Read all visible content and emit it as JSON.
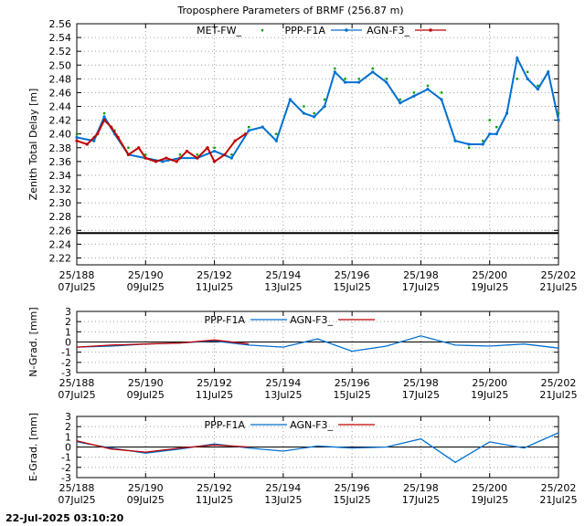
{
  "timestamp": "22-Jul-2025 03:10:20",
  "colors": {
    "met": "#00a000",
    "ppp": "#0070d0",
    "agn": "#c00000",
    "grid": "#a0a0a0",
    "axis": "#000000"
  },
  "x_ticks": [
    {
      "day": 188,
      "top": "25/188",
      "bottom": "07Jul25"
    },
    {
      "day": 190,
      "top": "25/190",
      "bottom": "09Jul25"
    },
    {
      "day": 192,
      "top": "25/192",
      "bottom": "11Jul25"
    },
    {
      "day": 194,
      "top": "25/194",
      "bottom": "13Jul25"
    },
    {
      "day": 196,
      "top": "25/196",
      "bottom": "15Jul25"
    },
    {
      "day": 198,
      "top": "25/198",
      "bottom": "17Jul25"
    },
    {
      "day": 200,
      "top": "25/200",
      "bottom": "19Jul25"
    },
    {
      "day": 202,
      "top": "25/202",
      "bottom": "21Jul25"
    }
  ],
  "chart_data": [
    {
      "type": "line",
      "title": "Troposphere Parameters of BRMF (256.87 m)",
      "ylabel": "Zenith Total Delay [m]",
      "xlim": [
        188,
        202
      ],
      "ylim": [
        2.21,
        2.56
      ],
      "yticks": [
        "2.22",
        "2.24",
        "2.26",
        "2.28",
        "2.30",
        "2.32",
        "2.34",
        "2.36",
        "2.38",
        "2.40",
        "2.42",
        "2.44",
        "2.46",
        "2.48",
        "2.50",
        "2.52",
        "2.54",
        "2.56"
      ],
      "grid": true,
      "legend": "top-center",
      "series": [
        {
          "name": "MET-FW_",
          "color": "#00a000",
          "x": [
            188.0,
            188.5,
            188.8,
            189.1,
            189.5,
            190.0,
            190.5,
            191.0,
            191.5,
            192.0,
            192.5,
            193.0,
            193.4,
            193.8,
            194.2,
            194.6,
            194.9,
            195.2,
            195.5,
            195.8,
            196.2,
            196.6,
            197.0,
            197.4,
            197.8,
            198.2,
            198.6,
            199.0,
            199.4,
            199.8,
            200.0,
            200.2,
            200.5,
            200.8,
            201.1,
            201.4,
            201.7,
            202.0
          ],
          "y": [
            2.4,
            2.395,
            2.43,
            2.405,
            2.38,
            2.37,
            2.36,
            2.37,
            2.37,
            2.38,
            2.37,
            2.41,
            2.41,
            2.4,
            2.45,
            2.44,
            2.43,
            2.45,
            2.495,
            2.48,
            2.48,
            2.495,
            2.48,
            2.45,
            2.46,
            2.47,
            2.46,
            2.39,
            2.38,
            2.39,
            2.42,
            2.41,
            2.43,
            2.48,
            2.49,
            2.47,
            2.49,
            2.43
          ]
        },
        {
          "name": "PPP-F1A",
          "color": "#0070d0",
          "x": [
            188.0,
            188.5,
            188.8,
            189.1,
            189.5,
            190.0,
            190.5,
            191.0,
            191.5,
            192.0,
            192.5,
            193.0,
            193.4,
            193.8,
            194.2,
            194.6,
            194.9,
            195.2,
            195.5,
            195.8,
            196.2,
            196.6,
            197.0,
            197.4,
            197.8,
            198.2,
            198.6,
            199.0,
            199.4,
            199.8,
            200.0,
            200.2,
            200.5,
            200.8,
            201.1,
            201.4,
            201.7,
            202.0
          ],
          "y": [
            2.395,
            2.39,
            2.425,
            2.4,
            2.37,
            2.365,
            2.36,
            2.365,
            2.365,
            2.375,
            2.365,
            2.405,
            2.41,
            2.39,
            2.45,
            2.43,
            2.425,
            2.44,
            2.49,
            2.475,
            2.475,
            2.49,
            2.475,
            2.445,
            2.455,
            2.465,
            2.45,
            2.39,
            2.385,
            2.385,
            2.4,
            2.4,
            2.43,
            2.51,
            2.48,
            2.465,
            2.49,
            2.42
          ]
        },
        {
          "name": "AGN-F3_",
          "color": "#c00000",
          "x": [
            188.0,
            188.3,
            188.6,
            188.8,
            189.0,
            189.2,
            189.5,
            189.8,
            190.0,
            190.3,
            190.6,
            190.9,
            191.2,
            191.5,
            191.8,
            192.0,
            192.3,
            192.6,
            192.9
          ],
          "y": [
            2.39,
            2.385,
            2.4,
            2.42,
            2.41,
            2.395,
            2.37,
            2.38,
            2.365,
            2.36,
            2.365,
            2.36,
            2.375,
            2.365,
            2.38,
            2.36,
            2.37,
            2.39,
            2.4
          ]
        },
        {
          "name": "",
          "color": "#000000",
          "x": [
            188.0,
            202.0
          ],
          "y": [
            2.256,
            2.256
          ]
        }
      ]
    },
    {
      "type": "line",
      "ylabel": "N-Grad. [mm]",
      "xlim": [
        188,
        202
      ],
      "ylim": [
        -3,
        3
      ],
      "yticks": [
        "-3",
        "-2",
        "-1",
        "0",
        "1",
        "2",
        "3"
      ],
      "grid": true,
      "legend": "top-center",
      "series": [
        {
          "name": "PPP-F1A",
          "color": "#0070d0",
          "x": [
            188,
            189,
            190,
            191,
            192,
            193,
            194,
            195,
            196,
            197,
            198,
            199,
            200,
            201,
            202
          ],
          "y": [
            -0.5,
            -0.4,
            -0.2,
            -0.1,
            0.1,
            -0.3,
            -0.5,
            0.3,
            -0.9,
            -0.4,
            0.6,
            -0.3,
            -0.4,
            -0.2,
            -0.6
          ]
        },
        {
          "name": "AGN-F3_",
          "color": "#c00000",
          "x": [
            188,
            189,
            190,
            191,
            192,
            193
          ],
          "y": [
            -0.5,
            -0.3,
            -0.2,
            -0.1,
            0.2,
            -0.2
          ]
        }
      ]
    },
    {
      "type": "line",
      "ylabel": "E-Grad. [mm]",
      "xlim": [
        188,
        202
      ],
      "ylim": [
        -3,
        3
      ],
      "yticks": [
        "-3",
        "-2",
        "-1",
        "0",
        "1",
        "2",
        "3"
      ],
      "grid": true,
      "legend": "top-center",
      "series": [
        {
          "name": "PPP-F1A",
          "color": "#0070d0",
          "x": [
            188,
            189,
            190,
            191,
            192,
            193,
            194,
            195,
            196,
            197,
            198,
            199,
            200,
            201,
            202
          ],
          "y": [
            0.5,
            -0.1,
            -0.6,
            -0.2,
            0.3,
            -0.1,
            -0.4,
            0.1,
            -0.1,
            0.0,
            0.8,
            -1.5,
            0.5,
            -0.1,
            1.4
          ]
        },
        {
          "name": "AGN-F3_",
          "color": "#c00000",
          "x": [
            188,
            189,
            190,
            191,
            192,
            193
          ],
          "y": [
            0.6,
            -0.2,
            -0.5,
            -0.1,
            0.2,
            0.0
          ]
        }
      ]
    }
  ]
}
